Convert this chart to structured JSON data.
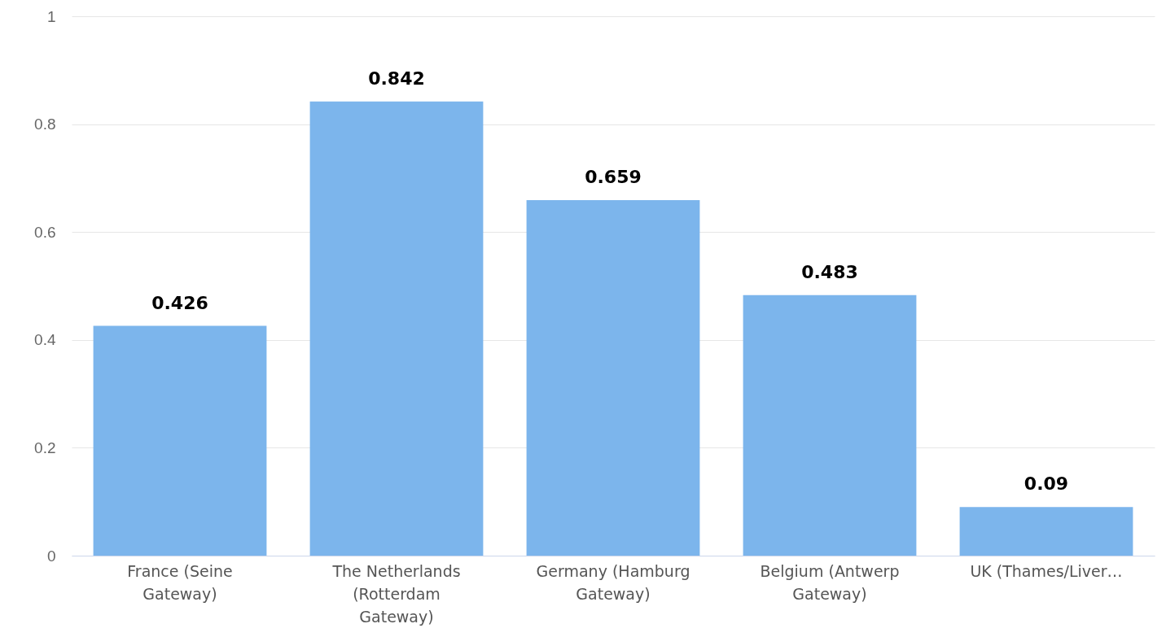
{
  "chart_data": {
    "type": "bar",
    "categories": [
      "France (Seine Gateway)",
      "The Netherlands (Rotterdam Gateway)",
      "Germany (Hamburg Gateway)",
      "Belgium (Antwerp Gateway)",
      "UK (Thames/Liver…"
    ],
    "values": [
      0.426,
      0.842,
      0.659,
      0.483,
      0.09
    ],
    "color": "#7cb5ec",
    "ylim": [
      0,
      1
    ],
    "yticks": [
      0,
      0.2,
      0.4,
      0.6,
      0.8,
      1
    ],
    "grid": "y",
    "data_labels": true
  }
}
